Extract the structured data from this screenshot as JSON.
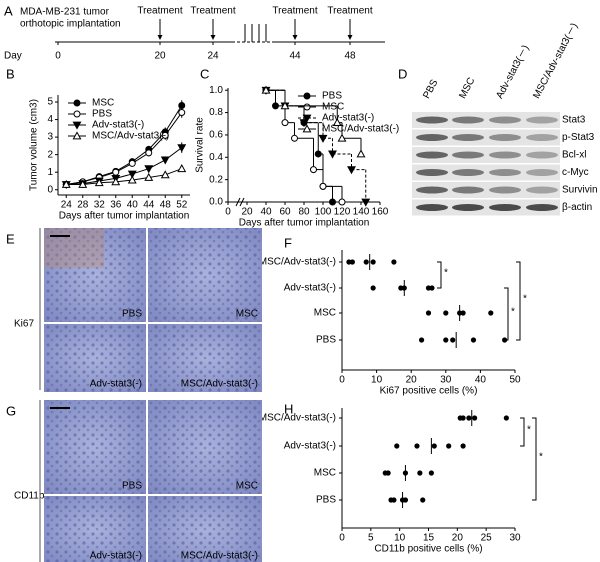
{
  "panel_a": {
    "panel": "A",
    "title": [
      "MDA-MB-231 tumor",
      "orthotopic implantation"
    ],
    "axis_label": "Day",
    "days": [
      0,
      20,
      24,
      44,
      48
    ],
    "treatments": [
      {
        "day": 20,
        "label": "Treatment"
      },
      {
        "day": 24,
        "label": "Treatment"
      },
      {
        "day": 44,
        "label": "Treatment"
      },
      {
        "day": 48,
        "label": "Treatment"
      }
    ]
  },
  "chart_data": [
    {
      "type": "line",
      "panel": "B",
      "ylabel": "Tumor volume (cm3)",
      "xlabel": "Days after tumor implantation",
      "x": [
        24,
        28,
        32,
        36,
        40,
        44,
        48,
        52
      ],
      "xlim": [
        22,
        54
      ],
      "xticks": [
        24,
        28,
        32,
        36,
        40,
        44,
        48,
        52
      ],
      "ylim": [
        -0.3,
        5.4
      ],
      "yticks": [
        0,
        1,
        2,
        3,
        4,
        5
      ],
      "series": [
        {
          "name": "MSC",
          "color": "#000000",
          "marker": "circle-filled",
          "dash": false,
          "values": [
            0.3,
            0.45,
            0.75,
            1.05,
            1.6,
            2.3,
            3.3,
            4.8
          ],
          "errors": [
            0.05,
            0.08,
            0.1,
            0.12,
            0.15,
            0.2,
            0.25,
            0.3
          ]
        },
        {
          "name": "PBS",
          "color": "#000000",
          "marker": "circle-open",
          "dash": false,
          "values": [
            0.3,
            0.45,
            0.7,
            1.0,
            1.5,
            2.1,
            3.1,
            4.4
          ],
          "errors": [
            0.05,
            0.07,
            0.1,
            0.12,
            0.15,
            0.2,
            0.25,
            0.3
          ]
        },
        {
          "name": "Adv-stat3(-)",
          "color": "#000000",
          "marker": "triangle-down-filled",
          "dash": false,
          "values": [
            0.3,
            0.35,
            0.5,
            0.65,
            0.9,
            1.2,
            1.7,
            2.4
          ],
          "errors": [
            0.03,
            0.05,
            0.07,
            0.08,
            0.1,
            0.15,
            0.2,
            0.3
          ]
        },
        {
          "name": "MSC/Adv-stat3(-)",
          "color": "#000000",
          "marker": "triangle-up-open",
          "dash": false,
          "values": [
            0.3,
            0.3,
            0.4,
            0.45,
            0.55,
            0.7,
            0.85,
            1.2
          ],
          "errors": [
            0.03,
            0.04,
            0.05,
            0.05,
            0.06,
            0.08,
            0.1,
            0.15
          ]
        }
      ]
    },
    {
      "type": "step",
      "panel": "C",
      "ylabel": "Survival rate",
      "xlabel": "Days after tumor implantation",
      "xlim": [
        0,
        160
      ],
      "xticks": [
        0,
        20,
        40,
        60,
        80,
        100,
        120,
        140,
        160
      ],
      "ylim": [
        0,
        1.02
      ],
      "yticks": [
        {
          "value": 0,
          "label": "0.0"
        },
        {
          "value": 0.2,
          "label": "0.2"
        },
        {
          "value": 0.4,
          "label": "0.4"
        },
        {
          "value": 0.6,
          "label": "0.6"
        },
        {
          "value": 0.8,
          "label": "0.8"
        },
        {
          "value": 1,
          "label": "1.0"
        }
      ],
      "series": [
        {
          "name": "PBS",
          "color": "#000000",
          "marker": "circle-filled",
          "dash": false,
          "x": [
            40,
            50,
            80,
            95,
            100,
            110
          ],
          "values": [
            1,
            0.86,
            0.71,
            0.43,
            0.14,
            0
          ]
        },
        {
          "name": "MSC",
          "color": "#000000",
          "marker": "circle-open",
          "dash": false,
          "x": [
            40,
            60,
            70,
            90,
            100,
            120
          ],
          "values": [
            1,
            0.71,
            0.57,
            0.29,
            0.14,
            0
          ]
        },
        {
          "name": "Adv-stat3(-)",
          "color": "#000000",
          "marker": "triangle-down-filled",
          "dash": true,
          "x": [
            40,
            60,
            80,
            100,
            110,
            130,
            145
          ],
          "values": [
            1,
            0.86,
            0.71,
            0.57,
            0.43,
            0.29,
            0
          ]
        },
        {
          "name": "MSC/Adv-stat3(-)",
          "color": "#000000",
          "marker": "triangle-up-open",
          "dash": false,
          "x": [
            40,
            60,
            115,
            120,
            140
          ],
          "values": [
            1,
            0.86,
            0.71,
            0.57,
            0.43
          ]
        }
      ]
    },
    {
      "type": "strip",
      "panel": "F",
      "xlabel": "Ki67 positive cells (%)",
      "xlim": [
        0,
        50
      ],
      "xticks": [
        0,
        10,
        20,
        30,
        40,
        50
      ],
      "categories": [
        "MSC/Adv-stat3(-)",
        "Adv-stat3(-)",
        "MSC",
        "PBS"
      ],
      "values": [
        [
          2,
          3,
          7,
          9,
          15
        ],
        [
          9,
          17,
          18,
          25,
          26
        ],
        [
          25,
          30,
          34,
          35,
          43
        ],
        [
          23,
          30,
          32,
          38,
          47
        ]
      ],
      "means": [
        8,
        18,
        34,
        33
      ],
      "annotations": [
        "*",
        "*",
        "*"
      ]
    },
    {
      "type": "strip",
      "panel": "H",
      "xlabel": "CD11b positive cells (%)",
      "xlim": [
        0,
        30
      ],
      "xticks": [
        0,
        5,
        10,
        15,
        20,
        25,
        30
      ],
      "categories": [
        "MSC/Adv-stat3(-)",
        "Adv-stat3(-)",
        "MSC",
        "PBS"
      ],
      "values": [
        [
          20.5,
          21,
          22,
          23,
          28.5
        ],
        [
          9.5,
          13,
          16,
          18.5,
          21
        ],
        [
          7.5,
          8,
          11,
          13.5,
          15.5
        ],
        [
          8.5,
          9,
          10.5,
          11,
          14
        ]
      ],
      "means": [
        22.5,
        15.5,
        11,
        10.5
      ],
      "annotations": [
        "*",
        "*"
      ]
    }
  ],
  "blot": {
    "panel": "D",
    "columns": [
      "PBS",
      "MSC",
      "Adv-stat3(－)",
      "MSC/Adv-stat3(－)"
    ],
    "rows": [
      "Stat3",
      "p-Stat3",
      "Bcl-xl",
      "c-Myc",
      "Survivin",
      "β-actin"
    ]
  },
  "micrographs": [
    {
      "panel": "E",
      "stain": "Ki67",
      "labels": [
        "PBS",
        "MSC",
        "Adv-stat3(-)",
        "MSC/Adv-stat3(-)"
      ]
    },
    {
      "panel": "G",
      "stain": "CD11b",
      "labels": [
        "PBS",
        "MSC",
        "Adv-stat3(-)",
        "MSC/Adv-stat3(-)"
      ]
    }
  ]
}
